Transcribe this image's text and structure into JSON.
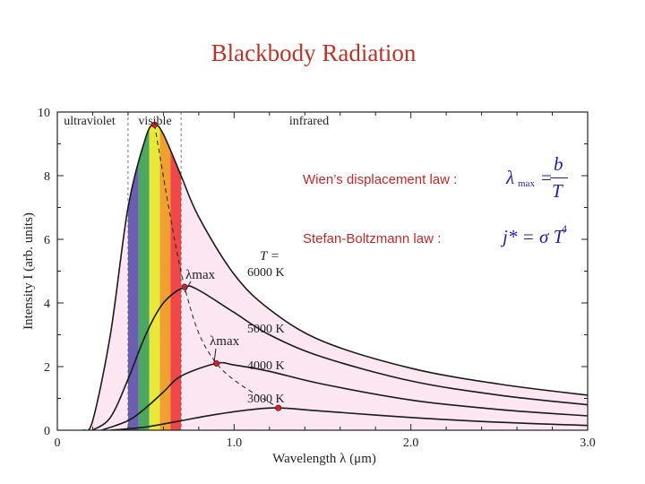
{
  "slide": {
    "title": "Blackbody Radiation"
  },
  "laws": {
    "wien_label": "Wien’s displacement law :",
    "wien_lhs": "λ",
    "wien_sub": "max",
    "wien_eq": "=",
    "wien_num": "b",
    "wien_den": "T",
    "stefan_label": "Stefan-Boltzmann law :",
    "stefan_formula": "j* = σ T",
    "stefan_exp": "4"
  },
  "colors": {
    "title": "#b5362a",
    "laws_label": "#c0282a",
    "formula": "#1f1fa8",
    "fill": "#fbe6f2",
    "curve": "#1a1a1a",
    "peak_marker": "#c0282a",
    "spectrum": [
      "#6a5fb0",
      "#4aa860",
      "#e8e83a",
      "#f0a030",
      "#f04848"
    ]
  },
  "chart_data": {
    "type": "line",
    "xlabel": "Wavelength λ (μm)",
    "ylabel": "Intensity I (arb. units)",
    "xlim": [
      0,
      3.0
    ],
    "ylim": [
      0,
      10
    ],
    "x_ticks": [
      "0",
      "1.0",
      "2.0",
      "3.0"
    ],
    "y_ticks": [
      "0",
      "2",
      "4",
      "6",
      "8",
      "10"
    ],
    "regions": [
      {
        "label": "ultraviolet",
        "x_range": [
          0,
          0.4
        ]
      },
      {
        "label": "visible",
        "x_range": [
          0.4,
          0.7
        ]
      },
      {
        "label": "infrared",
        "x_range": [
          0.7,
          3.0
        ]
      }
    ],
    "series": [
      {
        "name": "6000 K",
        "peak": [
          0.55,
          9.6
        ],
        "points": [
          [
            0.15,
            0.0
          ],
          [
            0.2,
            0.3
          ],
          [
            0.3,
            3.0
          ],
          [
            0.4,
            7.0
          ],
          [
            0.5,
            9.2
          ],
          [
            0.55,
            9.6
          ],
          [
            0.6,
            9.3
          ],
          [
            0.7,
            8.0
          ],
          [
            0.8,
            6.7
          ],
          [
            1.0,
            4.9
          ],
          [
            1.2,
            3.8
          ],
          [
            1.5,
            2.8
          ],
          [
            2.0,
            1.95
          ],
          [
            2.5,
            1.45
          ],
          [
            3.0,
            1.1
          ]
        ]
      },
      {
        "name": "5000 K",
        "peak": [
          0.72,
          4.5
        ],
        "points": [
          [
            0.2,
            0.0
          ],
          [
            0.3,
            0.4
          ],
          [
            0.4,
            1.6
          ],
          [
            0.5,
            3.0
          ],
          [
            0.6,
            4.0
          ],
          [
            0.72,
            4.5
          ],
          [
            0.8,
            4.4
          ],
          [
            1.0,
            3.7
          ],
          [
            1.2,
            3.0
          ],
          [
            1.5,
            2.3
          ],
          [
            2.0,
            1.55
          ],
          [
            2.5,
            1.1
          ],
          [
            3.0,
            0.8
          ]
        ]
      },
      {
        "name": "4000 K",
        "peak": [
          0.9,
          2.1
        ],
        "points": [
          [
            0.25,
            0.0
          ],
          [
            0.4,
            0.3
          ],
          [
            0.5,
            0.7
          ],
          [
            0.6,
            1.2
          ],
          [
            0.7,
            1.7
          ],
          [
            0.9,
            2.1
          ],
          [
            1.0,
            2.05
          ],
          [
            1.2,
            1.85
          ],
          [
            1.5,
            1.45
          ],
          [
            2.0,
            0.95
          ],
          [
            2.5,
            0.65
          ],
          [
            3.0,
            0.45
          ]
        ]
      },
      {
        "name": "3000 K",
        "peak": [
          1.25,
          0.7
        ],
        "points": [
          [
            0.3,
            0.0
          ],
          [
            0.5,
            0.1
          ],
          [
            0.7,
            0.3
          ],
          [
            0.9,
            0.5
          ],
          [
            1.1,
            0.65
          ],
          [
            1.25,
            0.7
          ],
          [
            1.5,
            0.6
          ],
          [
            2.0,
            0.4
          ],
          [
            2.5,
            0.25
          ],
          [
            3.0,
            0.15
          ]
        ]
      }
    ],
    "annotations": [
      {
        "text": "T =",
        "at_series": "6000 K"
      },
      {
        "text": "λmax",
        "near": [
          0.72,
          4.5
        ]
      },
      {
        "text": "λmax",
        "near": [
          0.9,
          2.1
        ]
      }
    ]
  }
}
